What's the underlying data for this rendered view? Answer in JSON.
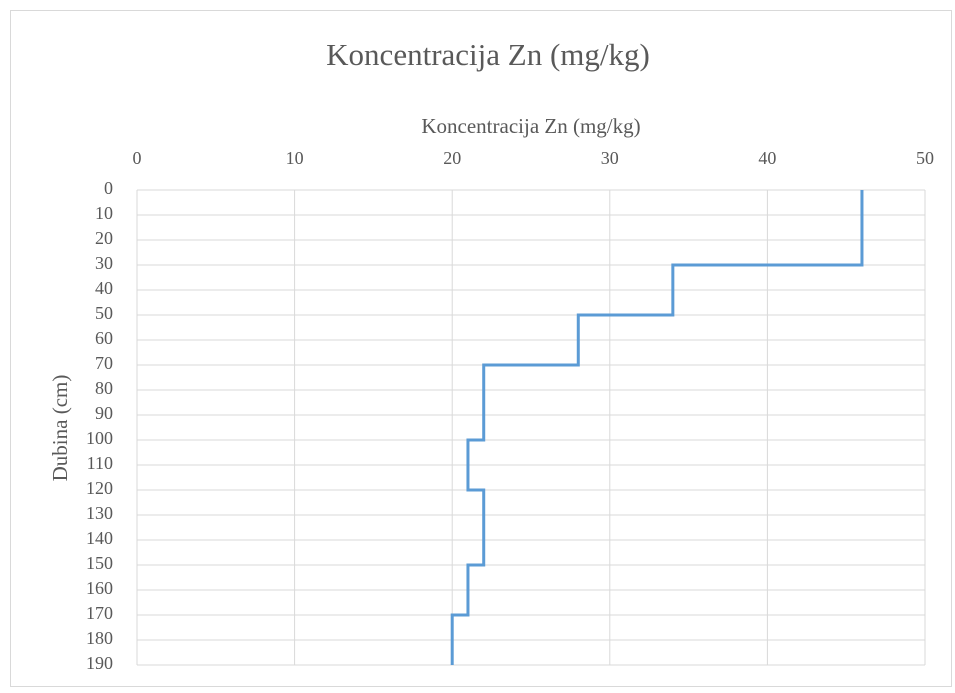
{
  "chart_data": {
    "type": "line",
    "title": "Koncentracija Zn (mg/kg)",
    "x_label": "Koncentracija Zn (mg/kg)",
    "y_label": "Dubina (cm)",
    "series": [
      {
        "name": "Zn",
        "color": "#5b9bd5",
        "x": [
          46,
          46,
          34,
          34,
          28,
          28,
          22,
          22,
          21,
          21,
          22,
          22,
          21,
          21,
          20,
          20
        ],
        "y": [
          0,
          30,
          30,
          50,
          50,
          70,
          70,
          100,
          100,
          120,
          120,
          150,
          150,
          170,
          170,
          190
        ]
      }
    ],
    "xlim": [
      0,
      50
    ],
    "xticks": [
      0,
      10,
      20,
      30,
      40,
      50
    ],
    "ylim": [
      0,
      190
    ],
    "yticks": [
      0,
      10,
      20,
      30,
      40,
      50,
      60,
      70,
      80,
      90,
      100,
      110,
      120,
      130,
      140,
      150,
      160,
      170,
      180,
      190
    ],
    "y_inverted": true,
    "x_axis_position": "top",
    "grid": true
  }
}
